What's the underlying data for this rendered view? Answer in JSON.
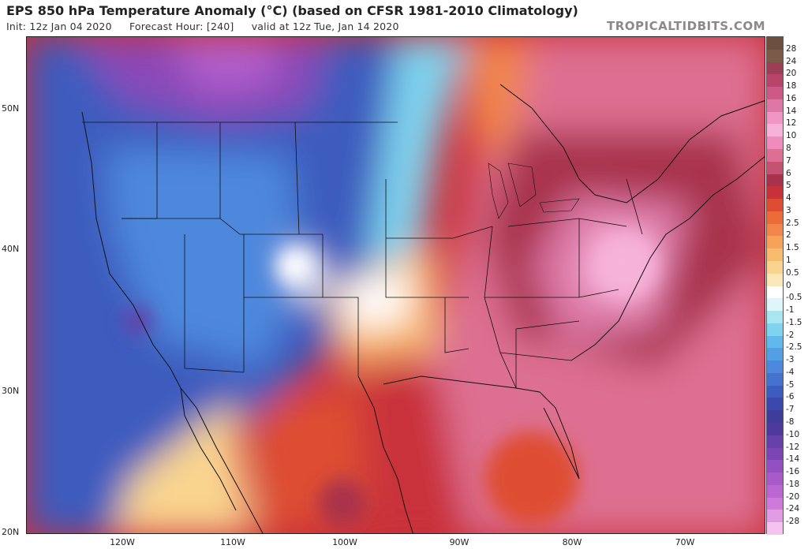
{
  "header": {
    "title": "EPS 850 hPa Temperature Anomaly (°C) (based on CFSR 1981-2010 Climatology)",
    "init": "Init: 12z Jan 04 2020",
    "forecast_hour": "Forecast Hour: [240]",
    "valid": "valid at 12z Tue, Jan 14 2020",
    "brand": "TROPICALTIDBITS.COM"
  },
  "axes": {
    "lat_labels": [
      "50N",
      "40N",
      "30N",
      "20N"
    ],
    "lon_labels": [
      "120W",
      "110W",
      "100W",
      "90W",
      "80W",
      "70W"
    ]
  },
  "colorbar": {
    "labels": [
      "28",
      "24",
      "20",
      "18",
      "16",
      "14",
      "12",
      "10",
      "8",
      "7",
      "6",
      "5",
      "4",
      "3",
      "2.5",
      "2",
      "1.5",
      "1",
      "0.5",
      "0",
      "-0.5",
      "-1",
      "-1.5",
      "-2",
      "-2.5",
      "-3",
      "-4",
      "-5",
      "-6",
      "-7",
      "-8",
      "-10",
      "-12",
      "-14",
      "-16",
      "-18",
      "-20",
      "-24",
      "-28"
    ],
    "colors": [
      "#7a5a48",
      "#9c3e56",
      "#b7456a",
      "#cb5a86",
      "#dd78a6",
      "#ef96c4",
      "#f7b2d9",
      "#f08cbb",
      "#dd6f92",
      "#c55271",
      "#a8324c",
      "#c9313a",
      "#de4d33",
      "#ec6b39",
      "#f2864a",
      "#f6a25a",
      "#f8bc6f",
      "#f9d48f",
      "#fbe8b8",
      "#ffffff",
      "#dff5f8",
      "#a9e6f1",
      "#7fd3ee",
      "#60b9ea",
      "#539fe4",
      "#4d88dc",
      "#4672cf",
      "#3e5cbe",
      "#3a4aac",
      "#3e3d9c",
      "#4d3a9c",
      "#6540a8",
      "#7d45b4",
      "#9450c0",
      "#a85ac9",
      "#bc67d1",
      "#cf79d9",
      "#e29ce4",
      "#f4c3ef"
    ]
  }
}
